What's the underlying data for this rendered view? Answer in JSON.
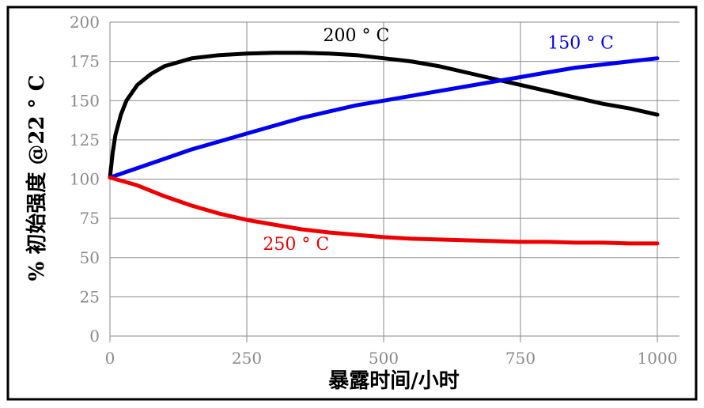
{
  "chart_data": {
    "type": "line",
    "title": "",
    "xlabel": "暴露时间/小时",
    "ylabel": "% 初始强度 @22 ° C",
    "xlim": [
      0,
      1000
    ],
    "ylim": [
      0,
      200
    ],
    "x_ticks": [
      "0",
      "250",
      "500",
      "750",
      "1000"
    ],
    "y_ticks": [
      "0",
      "25",
      "50",
      "75",
      "100",
      "125",
      "150",
      "175",
      "200"
    ],
    "grid": true,
    "series": [
      {
        "name": "200 ° C",
        "color": "#000000",
        "label_x": 450,
        "label_y": 188,
        "x": [
          0,
          5,
          10,
          20,
          30,
          50,
          75,
          100,
          150,
          200,
          250,
          300,
          350,
          400,
          450,
          500,
          550,
          600,
          650,
          700,
          750,
          800,
          850,
          900,
          950,
          1000
        ],
        "y": [
          101,
          117,
          128,
          141,
          150,
          160,
          167,
          172,
          177,
          179,
          180,
          180.5,
          180.5,
          180,
          179,
          177,
          175,
          172,
          168,
          164,
          160,
          156,
          152,
          148,
          145,
          141
        ]
      },
      {
        "name": "150 ° C",
        "color": "#0000ee",
        "label_x": 860,
        "label_y": 183,
        "x": [
          0,
          50,
          100,
          150,
          200,
          250,
          300,
          350,
          400,
          450,
          500,
          550,
          600,
          650,
          700,
          750,
          800,
          850,
          900,
          950,
          1000
        ],
        "y": [
          101,
          107,
          113,
          119,
          124,
          129,
          134,
          139,
          143,
          147,
          150,
          153,
          156,
          159,
          162,
          165,
          168,
          171,
          173,
          175,
          177
        ]
      },
      {
        "name": "250 ° C",
        "color": "#ee0000",
        "label_x": 340,
        "label_y": 55,
        "x": [
          0,
          50,
          100,
          150,
          200,
          250,
          300,
          350,
          400,
          450,
          500,
          550,
          600,
          650,
          700,
          750,
          800,
          850,
          900,
          950,
          1000
        ],
        "y": [
          101,
          96,
          89,
          83,
          78,
          74,
          71,
          68,
          66,
          64.5,
          63,
          62,
          61.5,
          61,
          60.5,
          60,
          60,
          59.5,
          59.5,
          59,
          59
        ]
      }
    ]
  }
}
